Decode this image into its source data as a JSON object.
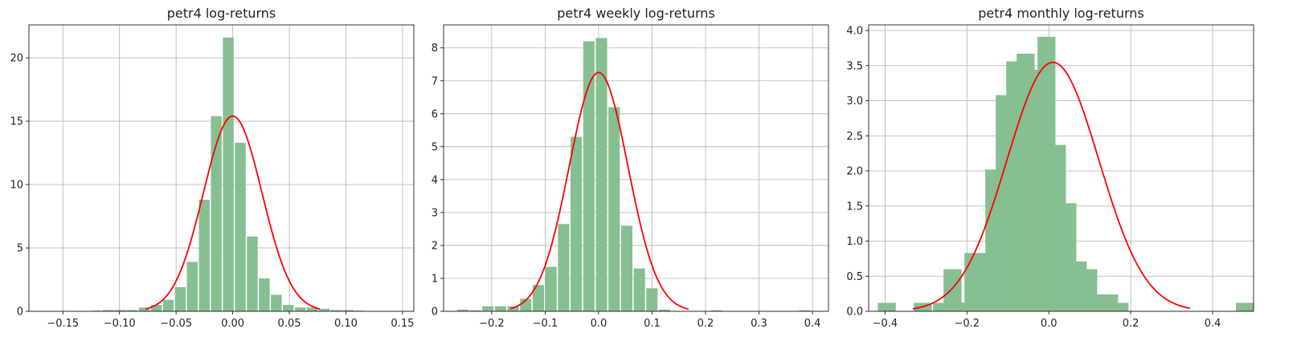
{
  "chart_data": [
    {
      "type": "bar",
      "title": "petr4 log-returns",
      "xlabel": "",
      "ylabel": "",
      "xlim": [
        -0.18,
        0.16
      ],
      "ylim": [
        0,
        22.6
      ],
      "xticks": [
        -0.15,
        -0.1,
        -0.05,
        0.0,
        0.05,
        0.1,
        0.15
      ],
      "xtick_labels": [
        "−0.15",
        "−0.10",
        "−0.05",
        "0.00",
        "0.05",
        "0.10",
        "0.15"
      ],
      "yticks": [
        0,
        5,
        10,
        15,
        20
      ],
      "ytick_labels": [
        "0",
        "5",
        "10",
        "15",
        "20"
      ],
      "grid": true,
      "bar_color": "#86bf91",
      "curve_color": "#ff0000",
      "bin_edges": [
        -0.1258,
        -0.1152,
        -0.1046,
        -0.094,
        -0.0834,
        -0.0728,
        -0.0622,
        -0.0516,
        -0.041,
        -0.0304,
        -0.0198,
        -0.0092,
        0.0014,
        0.012,
        0.0226,
        0.0332,
        0.0438,
        0.0544,
        0.065,
        0.0756,
        0.0862,
        0.0968,
        0.1074,
        0.118
      ],
      "values": [
        0.05,
        0.1,
        0.1,
        0.1,
        0.3,
        0.5,
        0.9,
        1.9,
        3.9,
        8.8,
        15.4,
        21.6,
        13.3,
        5.9,
        2.6,
        1.3,
        0.5,
        0.3,
        0.3,
        0.2,
        0.1,
        0.1,
        0.05
      ],
      "normal_fit": {
        "mu": 0.0,
        "sigma": 0.0259,
        "x_range": [
          -0.077,
          0.077
        ]
      }
    },
    {
      "type": "bar",
      "title": "petr4 weekly log-returns",
      "xlabel": "",
      "ylabel": "",
      "xlim": [
        -0.29,
        0.43
      ],
      "ylim": [
        0,
        8.7
      ],
      "xticks": [
        -0.2,
        -0.1,
        0.0,
        0.1,
        0.2,
        0.3,
        0.4
      ],
      "xtick_labels": [
        "−0.2",
        "−0.1",
        "0.0",
        "0.1",
        "0.2",
        "0.3",
        "0.4"
      ],
      "yticks": [
        0,
        1,
        2,
        3,
        4,
        5,
        6,
        7,
        8
      ],
      "ytick_labels": [
        "0",
        "1",
        "2",
        "3",
        "4",
        "5",
        "6",
        "7",
        "8"
      ],
      "grid": true,
      "bar_color": "#86bf91",
      "curve_color": "#ff0000",
      "bin_edges": [
        -0.266,
        -0.2424,
        -0.2188,
        -0.1952,
        -0.1716,
        -0.148,
        -0.1244,
        -0.1008,
        -0.0772,
        -0.0536,
        -0.03,
        -0.0064,
        0.0172,
        0.0408,
        0.0644,
        0.088,
        0.1116,
        0.1352
      ],
      "values": [
        0.05,
        0.03,
        0.15,
        0.15,
        0.15,
        0.38,
        0.8,
        1.35,
        2.65,
        5.3,
        8.2,
        8.3,
        6.2,
        2.6,
        1.3,
        0.7,
        0.05
      ],
      "extra_bars": [
        {
          "x0": 0.209,
          "x1": 0.232,
          "value": 0.03
        },
        {
          "x0": 0.374,
          "x1": 0.397,
          "value": 0.03
        }
      ],
      "normal_fit": {
        "mu": 0.0,
        "sigma": 0.055,
        "x_range": [
          -0.165,
          0.168
        ]
      }
    },
    {
      "type": "bar",
      "title": "petr4 monthly log-returns",
      "xlabel": "",
      "ylabel": "",
      "xlim": [
        -0.44,
        0.5
      ],
      "ylim": [
        0,
        4.08
      ],
      "xticks": [
        -0.4,
        -0.2,
        0.0,
        0.2,
        0.4
      ],
      "xtick_labels": [
        "−0.4",
        "−0.2",
        "0.0",
        "0.2",
        "0.4"
      ],
      "yticks": [
        0,
        0.5,
        1.0,
        1.5,
        2.0,
        2.5,
        3.0,
        3.5,
        4.0
      ],
      "ytick_labels": [
        "0.0",
        "0.5",
        "1.0",
        "1.5",
        "2.0",
        "2.5",
        "3.0",
        "3.5",
        "4.0"
      ],
      "grid": true,
      "bar_color": "#86bf91",
      "curve_color": "#ff0000",
      "bin_edges": [
        -0.42,
        -0.3714,
        -0.3228,
        -0.2742,
        -0.2256,
        -0.177,
        -0.1284,
        -0.0798,
        -0.0312,
        0.0174,
        0.066,
        0.1146,
        0.1632,
        0.2118,
        0.2604,
        0.309,
        0.3576,
        0.4062,
        0.4548,
        0.5034
      ],
      "bin_width": 0.0486,
      "bars": [
        {
          "x0": -0.42,
          "value": 0.12
        },
        {
          "x0": -0.332,
          "value": 0.12
        },
        {
          "x0": -0.2852,
          "value": 0.12
        },
        {
          "x0": -0.2595,
          "value": 0.6
        },
        {
          "x0": -0.234,
          "value": 0.12
        },
        {
          "x0": -0.2085,
          "value": 0.83
        },
        {
          "x0": -0.183,
          "value": 0.83
        },
        {
          "x0": -0.1575,
          "value": 2.02
        },
        {
          "x0": -0.132,
          "value": 3.08
        },
        {
          "x0": -0.1065,
          "value": 3.56
        },
        {
          "x0": -0.081,
          "value": 3.67
        },
        {
          "x0": -0.0555,
          "value": 3.44
        },
        {
          "x0": -0.03,
          "value": 3.91
        },
        {
          "x0": -0.0045,
          "value": 2.37
        },
        {
          "x0": 0.021,
          "value": 1.54
        },
        {
          "x0": 0.0465,
          "value": 0.71
        },
        {
          "x0": 0.072,
          "value": 0.6
        },
        {
          "x0": 0.0975,
          "value": 0.24
        },
        {
          "x0": 0.123,
          "value": 0.24
        },
        {
          "x0": 0.1485,
          "value": 0.12
        },
        {
          "x0": 0.4545,
          "value": 0.12
        }
      ],
      "normal_fit": {
        "mu": 0.01,
        "sigma": 0.1125,
        "x_range": [
          -0.332,
          0.345
        ]
      }
    }
  ]
}
